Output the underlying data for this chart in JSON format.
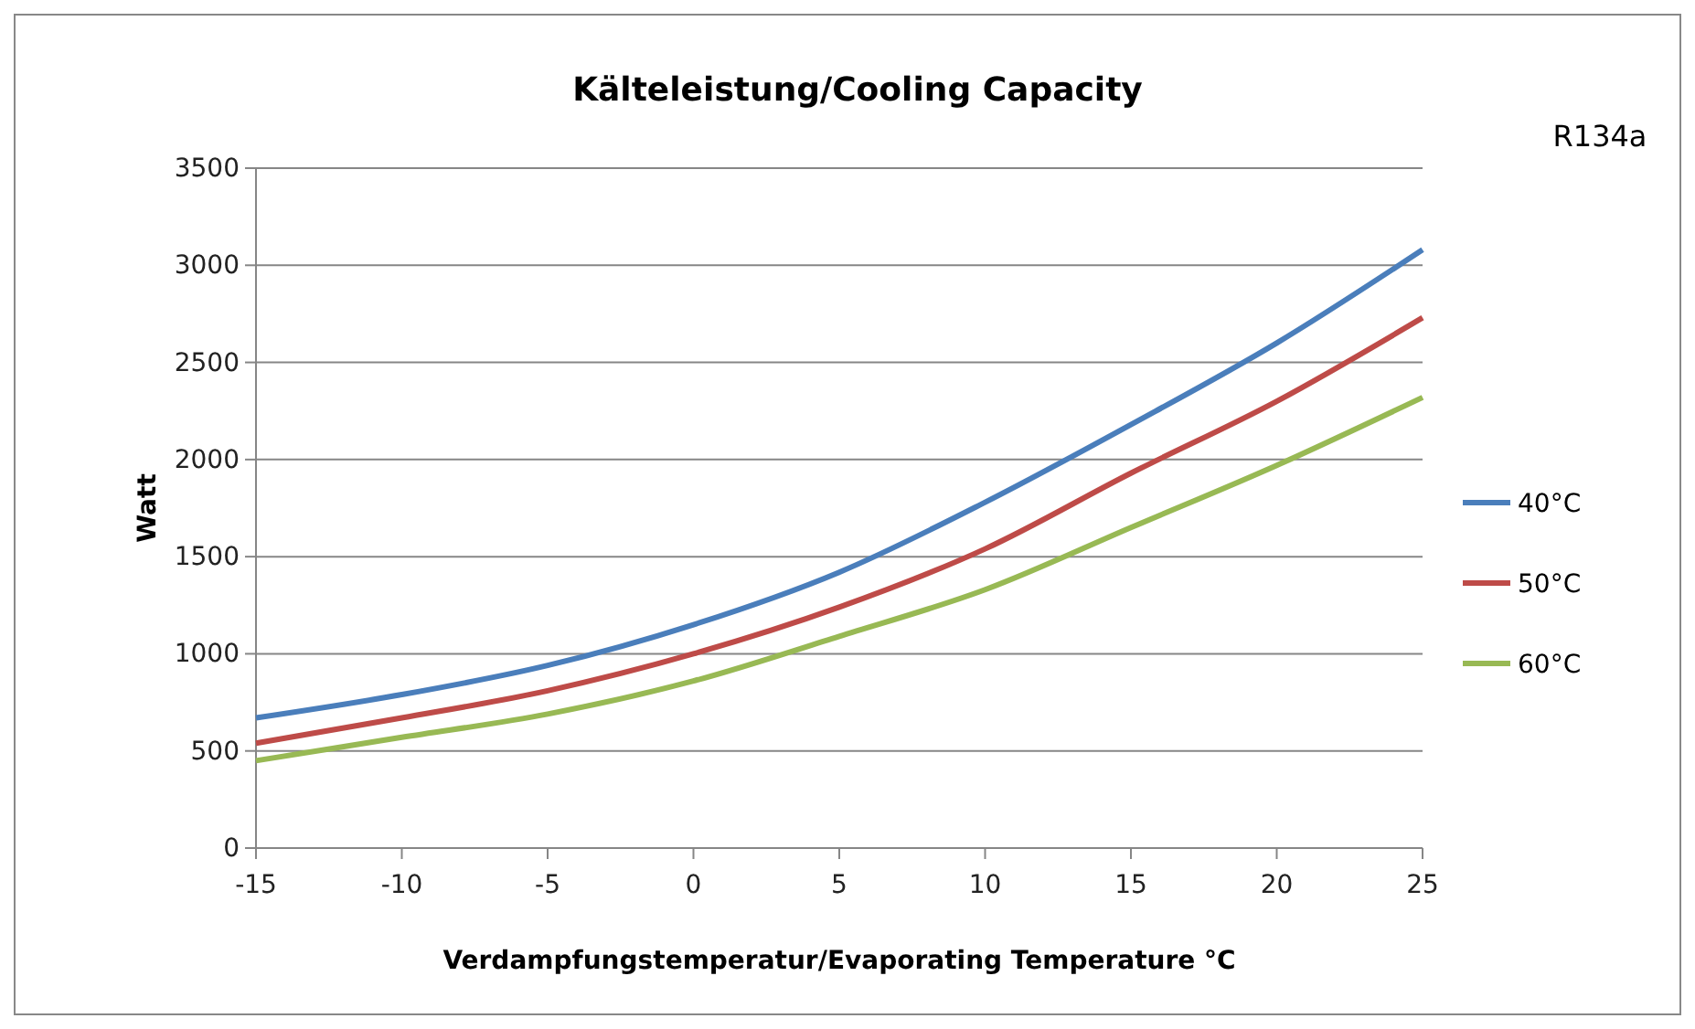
{
  "chart_data": {
    "type": "line",
    "title": "Kälteleistung/Cooling Capacity",
    "xlabel": "Verdampfungstemperatur/Evaporating  Temperature °C",
    "ylabel": "Watt",
    "annotations": [
      "R134a"
    ],
    "x": [
      -15,
      -10,
      -5,
      0,
      5,
      10,
      15,
      20,
      25
    ],
    "series": [
      {
        "name": "40°C",
        "color": "#4a7ebb",
        "values": [
          670,
          790,
          940,
          1150,
          1420,
          1780,
          2180,
          2600,
          3080
        ]
      },
      {
        "name": "50°C",
        "color": "#be4b48",
        "values": [
          540,
          670,
          810,
          1000,
          1240,
          1540,
          1930,
          2300,
          2730
        ]
      },
      {
        "name": "60°C",
        "color": "#98b954",
        "values": [
          450,
          570,
          690,
          860,
          1090,
          1330,
          1650,
          1970,
          2320
        ]
      }
    ],
    "xlim": [
      -15,
      25
    ],
    "xticks": [
      -15,
      -10,
      -5,
      0,
      5,
      10,
      15,
      20,
      25
    ],
    "ylim": [
      0,
      3500
    ],
    "yticks": [
      0,
      500,
      1000,
      1500,
      2000,
      2500,
      3000,
      3500
    ],
    "grid": "y",
    "legend": "right",
    "marker": "none",
    "line_style": "solid"
  }
}
